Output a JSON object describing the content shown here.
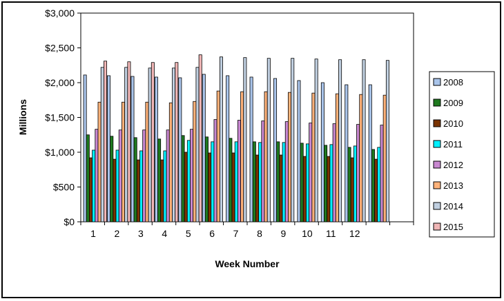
{
  "chart_data": {
    "type": "bar",
    "title": "",
    "xlabel": "Week Number",
    "ylabel": "Millions",
    "ylim": [
      0,
      3000
    ],
    "y_ticks": [
      "$0",
      "$500",
      "$1,000",
      "$1,500",
      "$2,000",
      "$2,500",
      "$3,000"
    ],
    "y_tick_values": [
      0,
      500,
      1000,
      1500,
      2000,
      2500,
      3000
    ],
    "categories": [
      "1",
      "2",
      "3",
      "4",
      "5",
      "6",
      "7",
      "8",
      "9",
      "10",
      "11",
      "12",
      "",
      ""
    ],
    "grid": false,
    "legend_position": "right",
    "series": [
      {
        "name": "2008",
        "color": "#a9c4ea",
        "values": [
          2110,
          2100,
          2090,
          2080,
          2070,
          2120,
          2100,
          2080,
          2060,
          2030,
          2000,
          1970,
          1970,
          null
        ]
      },
      {
        "name": "2009",
        "color": "#1f7a1f",
        "values": [
          1250,
          1230,
          1210,
          1190,
          1240,
          1220,
          1200,
          1150,
          1150,
          1130,
          1100,
          1070,
          1040,
          null
        ]
      },
      {
        "name": "2010",
        "color": "#7a3300",
        "values": [
          920,
          900,
          890,
          890,
          1000,
          990,
          990,
          960,
          960,
          940,
          940,
          920,
          900,
          null
        ]
      },
      {
        "name": "2011",
        "color": "#00f0ff",
        "values": [
          1030,
          1030,
          1020,
          1020,
          1170,
          1150,
          1150,
          1140,
          1140,
          1120,
          1110,
          1090,
          1070,
          null
        ]
      },
      {
        "name": "2012",
        "color": "#c888d0",
        "values": [
          1330,
          1320,
          1320,
          1320,
          1330,
          1470,
          1460,
          1450,
          1440,
          1420,
          1410,
          1400,
          1390,
          null
        ]
      },
      {
        "name": "2013",
        "color": "#ffb27a",
        "values": [
          1720,
          1720,
          1720,
          1710,
          1730,
          1880,
          1870,
          1870,
          1860,
          1850,
          1840,
          1830,
          1820,
          null
        ]
      },
      {
        "name": "2014",
        "color": "#c0cfe0",
        "values": [
          2220,
          2220,
          2210,
          2210,
          2220,
          2370,
          2360,
          2350,
          2350,
          2340,
          2330,
          2330,
          2320,
          null
        ]
      },
      {
        "name": "2015",
        "color": "#f0b6b6",
        "values": [
          2310,
          2300,
          2290,
          2290,
          2400,
          null,
          null,
          null,
          null,
          null,
          null,
          null,
          null,
          null
        ]
      }
    ]
  }
}
